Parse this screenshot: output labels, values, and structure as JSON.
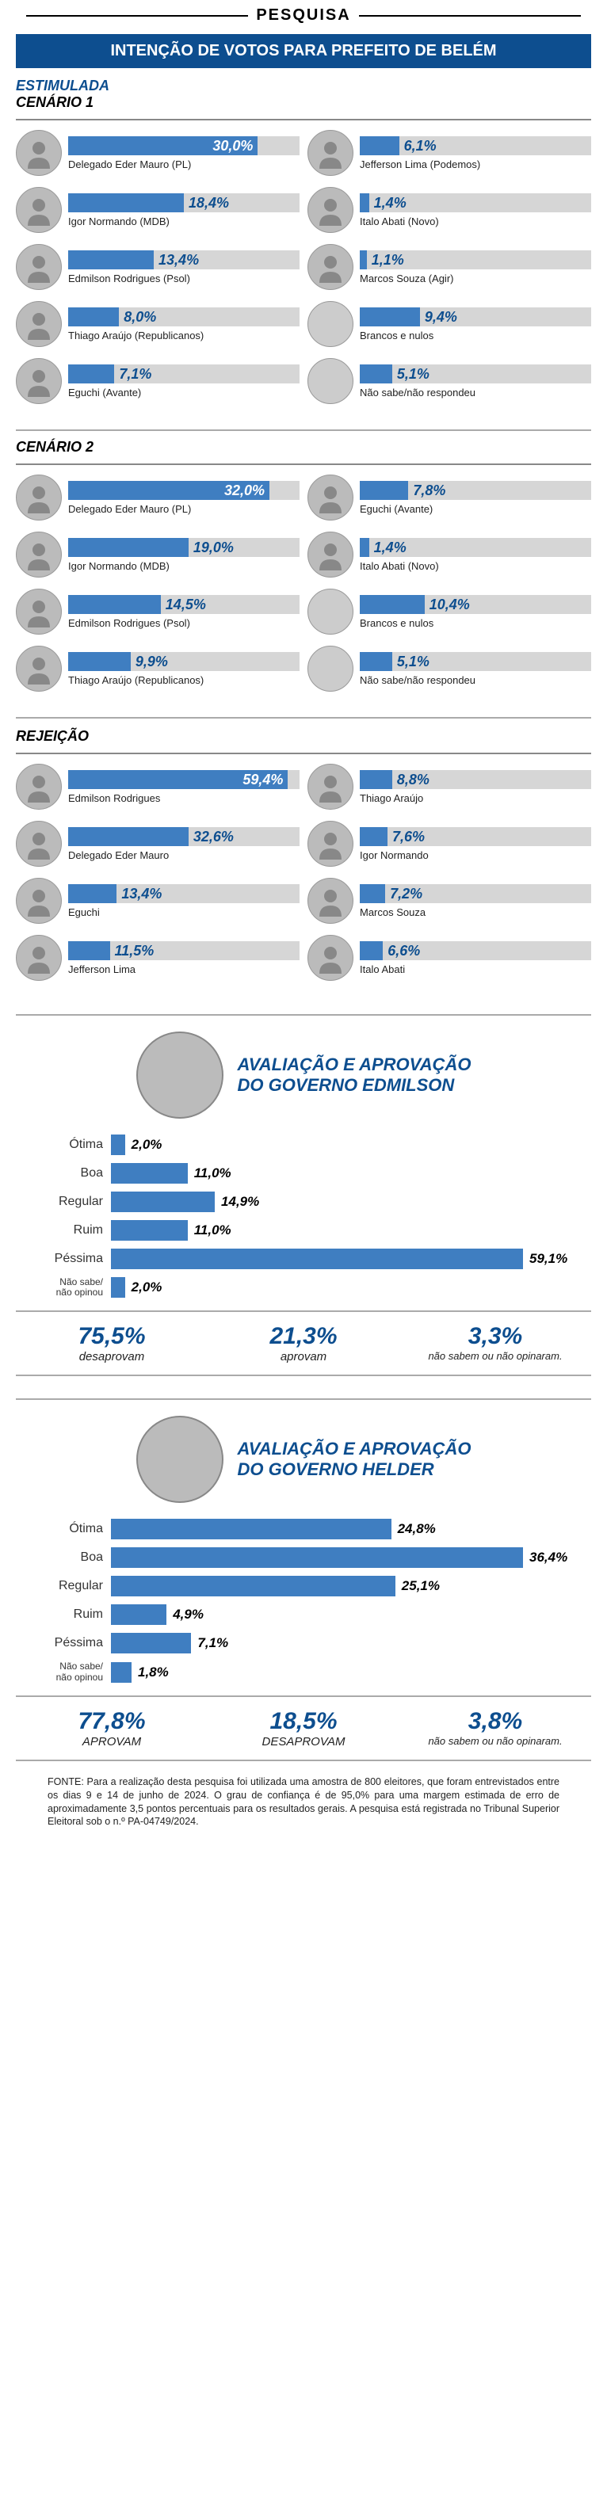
{
  "colors": {
    "primary": "#0d4e8f",
    "bar": "#3f7ec1",
    "track": "#d6d6d6",
    "avatar_gray": "#cccccc"
  },
  "header": {
    "tag": "PESQUISA",
    "subtitle": "INTENÇÃO DE VOTOS PARA PREFEITO DE BELÉM"
  },
  "estimulada_label": "ESTIMULADA",
  "cenario1": {
    "label": "CENÁRIO 1",
    "left": [
      {
        "name": "Delegado Eder Mauro (PL)",
        "pct": "30,0%",
        "width": 82,
        "pct_pos": "inside"
      },
      {
        "name": "Igor Normando (MDB)",
        "pct": "18,4%",
        "width": 50,
        "pct_pos": "outside"
      },
      {
        "name": "Edmilson Rodrigues (Psol)",
        "pct": "13,4%",
        "width": 37,
        "pct_pos": "outside"
      },
      {
        "name": "Thiago Araújo (Republicanos)",
        "pct": "8,0%",
        "width": 22,
        "pct_pos": "outside"
      },
      {
        "name": "Eguchi (Avante)",
        "pct": "7,1%",
        "width": 20,
        "pct_pos": "outside"
      }
    ],
    "right": [
      {
        "name": "Jefferson Lima (Podemos)",
        "pct": "6,1%",
        "width": 17,
        "pct_pos": "outside"
      },
      {
        "name": "Italo Abati (Novo)",
        "pct": "1,4%",
        "width": 4,
        "pct_pos": "outside"
      },
      {
        "name": "Marcos Souza (Agir)",
        "pct": "1,1%",
        "width": 3,
        "pct_pos": "outside"
      },
      {
        "name": "Brancos e nulos",
        "pct": "9,4%",
        "width": 26,
        "pct_pos": "outside",
        "gray": true
      },
      {
        "name": "Não sabe/não respondeu",
        "pct": "5,1%",
        "width": 14,
        "pct_pos": "outside",
        "gray": true
      }
    ]
  },
  "cenario2": {
    "label": "CENÁRIO 2",
    "left": [
      {
        "name": "Delegado Eder Mauro (PL)",
        "pct": "32,0%",
        "width": 87,
        "pct_pos": "inside"
      },
      {
        "name": "Igor Normando (MDB)",
        "pct": "19,0%",
        "width": 52,
        "pct_pos": "outside"
      },
      {
        "name": "Edmilson Rodrigues (Psol)",
        "pct": "14,5%",
        "width": 40,
        "pct_pos": "outside"
      },
      {
        "name": "Thiago Araújo (Republicanos)",
        "pct": "9,9%",
        "width": 27,
        "pct_pos": "outside"
      }
    ],
    "right": [
      {
        "name": "Eguchi (Avante)",
        "pct": "7,8%",
        "width": 21,
        "pct_pos": "outside"
      },
      {
        "name": "Italo Abati (Novo)",
        "pct": "1,4%",
        "width": 4,
        "pct_pos": "outside"
      },
      {
        "name": "Brancos e nulos",
        "pct": "10,4%",
        "width": 28,
        "pct_pos": "outside",
        "gray": true
      },
      {
        "name": "Não sabe/não respondeu",
        "pct": "5,1%",
        "width": 14,
        "pct_pos": "outside",
        "gray": true
      }
    ]
  },
  "rejeicao": {
    "label": "REJEIÇÃO",
    "left": [
      {
        "name": "Edmilson Rodrigues",
        "pct": "59,4%",
        "width": 95,
        "pct_pos": "inside"
      },
      {
        "name": "Delegado Eder Mauro",
        "pct": "32,6%",
        "width": 52,
        "pct_pos": "outside"
      },
      {
        "name": "Eguchi",
        "pct": "13,4%",
        "width": 21,
        "pct_pos": "outside"
      },
      {
        "name": "Jefferson Lima",
        "pct": "11,5%",
        "width": 18,
        "pct_pos": "outside"
      }
    ],
    "right": [
      {
        "name": "Thiago Araújo",
        "pct": "8,8%",
        "width": 14,
        "pct_pos": "outside"
      },
      {
        "name": "Igor Normando",
        "pct": "7,6%",
        "width": 12,
        "pct_pos": "outside"
      },
      {
        "name": "Marcos Souza",
        "pct": "7,2%",
        "width": 11,
        "pct_pos": "outside"
      },
      {
        "name": "Italo Abati",
        "pct": "6,6%",
        "width": 10,
        "pct_pos": "outside"
      }
    ]
  },
  "eval_edmilson": {
    "title_l1": "AVALIAÇÃO E APROVAÇÃO",
    "title_l2": "DO GOVERNO EDMILSON",
    "rows": [
      {
        "label": "Ótima",
        "pct": "2,0%",
        "width": 3.4
      },
      {
        "label": "Boa",
        "pct": "11,0%",
        "width": 18.6
      },
      {
        "label": "Regular",
        "pct": "14,9%",
        "width": 25.2
      },
      {
        "label": "Ruim",
        "pct": "11,0%",
        "width": 18.6
      },
      {
        "label": "Péssima",
        "pct": "59,1%",
        "width": 100
      },
      {
        "label": "Não sabe/não opinou",
        "pct": "2,0%",
        "width": 3.4,
        "small": true
      }
    ],
    "summary": [
      {
        "pct": "75,5%",
        "label": "desaprovam"
      },
      {
        "pct": "21,3%",
        "label": "aprovam"
      },
      {
        "pct": "3,3%",
        "label": "não sabem ou não opinaram.",
        "small": true
      }
    ]
  },
  "eval_helder": {
    "title_l1": "AVALIAÇÃO E APROVAÇÃO",
    "title_l2": "DO GOVERNO HELDER",
    "rows": [
      {
        "label": "Ótima",
        "pct": "24,8%",
        "width": 68
      },
      {
        "label": "Boa",
        "pct": "36,4%",
        "width": 100
      },
      {
        "label": "Regular",
        "pct": "25,1%",
        "width": 69
      },
      {
        "label": "Ruim",
        "pct": "4,9%",
        "width": 13.5
      },
      {
        "label": "Péssima",
        "pct": "7,1%",
        "width": 19.5
      },
      {
        "label": "Não sabe/não opinou",
        "pct": "1,8%",
        "width": 5,
        "small": true
      }
    ],
    "summary": [
      {
        "pct": "77,8%",
        "label": "APROVAM"
      },
      {
        "pct": "18,5%",
        "label": "DESAPROVAM"
      },
      {
        "pct": "3,8%",
        "label": "não sabem ou não opinaram.",
        "small": true
      }
    ]
  },
  "fonte": "FONTE: Para a realização desta pesquisa foi utilizada uma amostra de 800 eleitores, que foram entrevistados entre os dias 9 e 14 de junho de 2024. O grau de confiança é de 95,0% para uma margem estimada de erro de aproximadamente 3,5 pontos percentuais para os resultados gerais. A pesquisa está registrada no Tribunal Superior Eleitoral sob o n.º PA-04749/2024."
}
